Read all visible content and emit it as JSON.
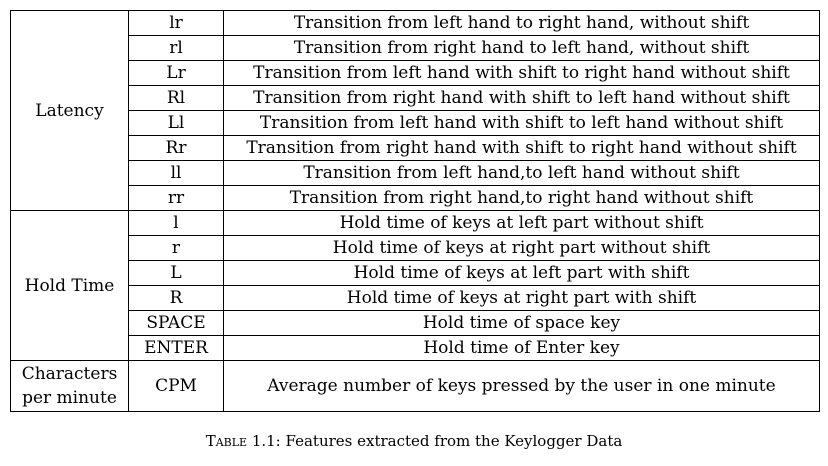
{
  "table": {
    "groups": {
      "latency": "Latency",
      "hold_time": "Hold Time",
      "cpm_line1": "Characters",
      "cpm_line2": "per minute"
    },
    "rows": [
      {
        "code": "lr",
        "description": "Transition from left hand to right hand, without shift"
      },
      {
        "code": "rl",
        "description": "Transition from right hand to left hand, without shift"
      },
      {
        "code": "Lr",
        "description": "Transition from left hand with shift to right hand without shift"
      },
      {
        "code": "Rl",
        "description": "Transition from right hand with shift to left hand without shift"
      },
      {
        "code": "Ll",
        "description": "Transition from left hand with shift to left hand without shift"
      },
      {
        "code": "Rr",
        "description": "Transition from right hand with shift to right hand without shift"
      },
      {
        "code": "ll",
        "description": "Transition from left hand,to left hand without shift"
      },
      {
        "code": "rr",
        "description": "Transition from right hand,to right hand without shift"
      },
      {
        "code": "l",
        "description": "Hold time of keys at left part without shift"
      },
      {
        "code": "r",
        "description": "Hold time of keys at right part without shift"
      },
      {
        "code": "L",
        "description": "Hold time of keys at left part with shift"
      },
      {
        "code": "R",
        "description": "Hold time of keys at right part with shift"
      },
      {
        "code": "SPACE",
        "description": "Hold time of space key"
      },
      {
        "code": "ENTER",
        "description": "Hold time of Enter key"
      },
      {
        "code": "CPM",
        "description": "Average number of keys pressed by the user in one minute"
      }
    ]
  },
  "caption": {
    "label": "Table 1.1:",
    "text": "Features extracted from the Keylogger Data"
  }
}
